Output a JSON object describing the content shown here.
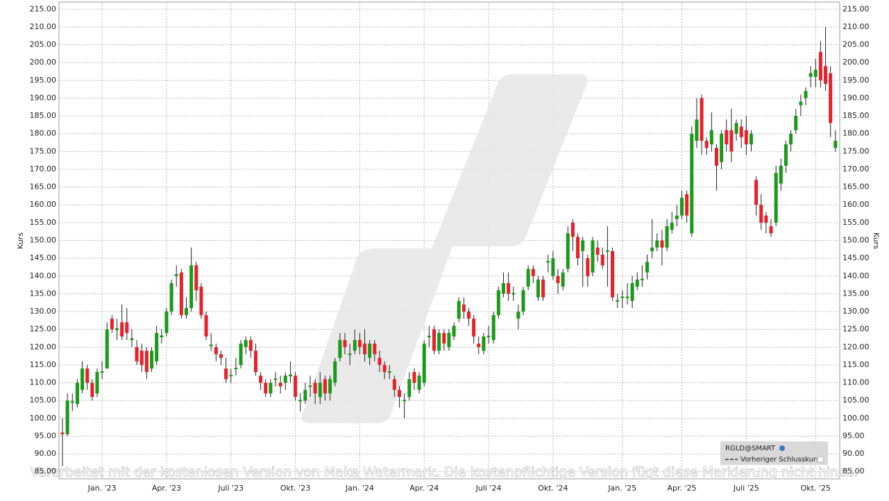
{
  "chart_data": {
    "type": "candlestick",
    "y_label": "Kurs",
    "legend": {
      "symbol": "RGLD@SMART",
      "line": "Vorheriger Schlusskurs"
    },
    "annotation": "Verarbeitet mit der kostenlosen Version von Make Watermark. Die kostenpflichtige Version fügt diese Markierung nicht hinzu.",
    "up_color": "#1a9a1a",
    "down_color": "#e8202a",
    "grid": true,
    "ylim": [
      83,
      217
    ],
    "yticks": [
      {
        "value": 85,
        "label": "85.00"
      },
      {
        "value": 90,
        "label": "90.00"
      },
      {
        "value": 95,
        "label": "95.00"
      },
      {
        "value": 100,
        "label": "100.00"
      },
      {
        "value": 105,
        "label": "105.00"
      },
      {
        "value": 110,
        "label": "110.00"
      },
      {
        "value": 115,
        "label": "115.00"
      },
      {
        "value": 120,
        "label": "120.00"
      },
      {
        "value": 125,
        "label": "125.00"
      },
      {
        "value": 130,
        "label": "130.00"
      },
      {
        "value": 135,
        "label": "135.00"
      },
      {
        "value": 140,
        "label": "140.00"
      },
      {
        "value": 145,
        "label": "145.00"
      },
      {
        "value": 150,
        "label": "150.00"
      },
      {
        "value": 155,
        "label": "155.00"
      },
      {
        "value": 160,
        "label": "160.00"
      },
      {
        "value": 165,
        "label": "165.00"
      },
      {
        "value": 170,
        "label": "170.00"
      },
      {
        "value": 175,
        "label": "175.00"
      },
      {
        "value": 180,
        "label": "180.00"
      },
      {
        "value": 185,
        "label": "185.00"
      },
      {
        "value": 190,
        "label": "190.00"
      },
      {
        "value": 195,
        "label": "195.00"
      },
      {
        "value": 200,
        "label": "200.00"
      },
      {
        "value": 205,
        "label": "205.00"
      },
      {
        "value": 210,
        "label": "210.00"
      },
      {
        "value": 215,
        "label": "215.00"
      }
    ],
    "categories": [
      null,
      null,
      null,
      null,
      null,
      null,
      null,
      null,
      "Jan. '23",
      null,
      null,
      null,
      null,
      null,
      null,
      null,
      null,
      null,
      null,
      null,
      null,
      "Apr. '23",
      null,
      null,
      null,
      null,
      null,
      null,
      null,
      null,
      null,
      null,
      null,
      null,
      "Juli '23",
      null,
      null,
      null,
      null,
      null,
      null,
      null,
      null,
      null,
      null,
      null,
      null,
      "Okt. '23",
      null,
      null,
      null,
      null,
      null,
      null,
      null,
      null,
      null,
      null,
      null,
      null,
      "Jan. '24",
      null,
      null,
      null,
      null,
      null,
      null,
      null,
      null,
      null,
      null,
      null,
      null,
      "Apr. '24",
      null,
      null,
      null,
      null,
      null,
      null,
      null,
      null,
      null,
      null,
      null,
      null,
      "Juli '24",
      null,
      null,
      null,
      null,
      null,
      null,
      null,
      null,
      null,
      null,
      null,
      null,
      "Okt. '24",
      null,
      null,
      null,
      null,
      null,
      null,
      null,
      null,
      null,
      null,
      null,
      null,
      null,
      "Jan. '25",
      null,
      null,
      null,
      null,
      null,
      null,
      null,
      null,
      null,
      null,
      null,
      "Apr. '25",
      null,
      null,
      null,
      null,
      null,
      null,
      null,
      null,
      null,
      null,
      null,
      null,
      "Juli '25",
      null,
      null,
      null,
      null,
      null,
      null,
      null,
      null,
      null,
      null,
      null,
      null,
      null,
      "Okt. '25",
      null,
      null,
      null,
      null
    ],
    "open": [
      96,
      95.5,
      104.4,
      104,
      108,
      114,
      110,
      107,
      112.8,
      114,
      128,
      124.8,
      127,
      127,
      122,
      120,
      119,
      119,
      114,
      116,
      122.8,
      124,
      130,
      140,
      141,
      129,
      131,
      143,
      137,
      129,
      120.3,
      120,
      118,
      114,
      111.8,
      113.8,
      115,
      120,
      122,
      119,
      112,
      110,
      107,
      110.8,
      110,
      110,
      111.8,
      112,
      104.8,
      105,
      108.8,
      110,
      106,
      111,
      107,
      110,
      117,
      122,
      117.8,
      119,
      122,
      121,
      117,
      121,
      117,
      115,
      112.8,
      111,
      108,
      104.8,
      106,
      113,
      108,
      110,
      122.8,
      125,
      119,
      124,
      120,
      123,
      128,
      132,
      130,
      128,
      121,
      119,
      122.8,
      122,
      129,
      135,
      138,
      134.8,
      128,
      130,
      137,
      142,
      134,
      139,
      143.8,
      140,
      140,
      137,
      142,
      155,
      151,
      147,
      145,
      141,
      148,
      146,
      146.8,
      147,
      132.8,
      133.8,
      133.8,
      133,
      137,
      138.8,
      141,
      147,
      148,
      150,
      148,
      153,
      156,
      157,
      163,
      152,
      178,
      190,
      178,
      177,
      176,
      172,
      181,
      181,
      180,
      182,
      181,
      177,
      167,
      160,
      157,
      154,
      155,
      166,
      171,
      177,
      181,
      188,
      190,
      196,
      196,
      203,
      199,
      197,
      176
    ],
    "high": [
      100,
      107,
      107,
      111,
      116,
      115,
      111,
      114,
      116,
      127,
      129,
      128,
      132,
      131,
      125,
      122,
      121,
      120,
      120,
      126,
      125,
      131,
      139,
      143,
      142,
      134,
      148,
      144,
      138,
      130,
      124,
      121,
      119,
      117,
      114,
      117,
      122,
      123,
      123,
      121,
      113,
      111,
      111,
      113,
      112,
      113,
      116,
      113,
      107,
      110,
      112,
      111,
      113,
      112,
      112,
      117,
      124,
      124,
      121,
      125,
      124,
      125,
      122,
      122,
      119,
      116,
      115,
      112,
      109,
      107,
      113,
      114,
      113,
      122,
      126,
      126,
      125,
      125,
      125,
      127,
      134,
      134,
      131,
      129,
      123,
      124,
      126,
      130,
      137,
      141,
      141,
      137,
      132,
      137,
      143,
      143,
      140,
      140,
      146,
      147,
      142,
      142,
      154,
      156,
      152,
      151,
      146,
      151,
      150,
      148,
      154,
      148,
      135,
      136,
      138,
      140,
      141,
      143,
      146,
      156,
      152,
      153,
      156,
      158,
      160,
      164,
      164,
      182,
      190,
      191,
      179,
      186,
      177,
      181,
      184,
      187,
      184,
      184,
      185,
      181,
      168,
      163,
      158,
      156,
      171,
      173,
      178,
      181,
      187,
      191,
      193,
      199,
      201,
      206,
      210,
      199,
      181
    ],
    "low": [
      86.5,
      95,
      102,
      103,
      107,
      108,
      105,
      106,
      111,
      114,
      124,
      122,
      122,
      122,
      120,
      115,
      113,
      111,
      113,
      115,
      121,
      123,
      129,
      137,
      128,
      128,
      130,
      133,
      128,
      122,
      119,
      116,
      115,
      110,
      110,
      112,
      114,
      118,
      117,
      112,
      108,
      106,
      106,
      109,
      107,
      108,
      110,
      105,
      102,
      104,
      106,
      104,
      104,
      105,
      105,
      109,
      116,
      118,
      115,
      118,
      118,
      116,
      115,
      116,
      113,
      111,
      111,
      106,
      103,
      100,
      105,
      108,
      107,
      109,
      120,
      118,
      118,
      119,
      119,
      122,
      127,
      128,
      126,
      121,
      118,
      118,
      121,
      121,
      128,
      134,
      133,
      133,
      125,
      129,
      136,
      138,
      133,
      133,
      141,
      139,
      135,
      136,
      141,
      147,
      143,
      137,
      137,
      140,
      144,
      142,
      137,
      133,
      131,
      131,
      132,
      131,
      136,
      137,
      139,
      145,
      147,
      143,
      147,
      152,
      154,
      156,
      155,
      151,
      176,
      174,
      174,
      175,
      164,
      170,
      175,
      172,
      178,
      176,
      174,
      175,
      157,
      153,
      152,
      151,
      154,
      164,
      169,
      175,
      180,
      185,
      188,
      193,
      193,
      193,
      192,
      179,
      175
    ],
    "close": [
      95.5,
      105,
      104.8,
      110,
      114,
      110,
      106,
      113,
      113.2,
      125,
      125,
      125.3,
      123,
      124,
      122.5,
      116,
      115,
      113,
      119,
      124,
      123.3,
      130,
      138,
      140.5,
      129,
      131,
      143,
      136,
      129,
      123,
      120.7,
      118,
      117,
      111,
      112.2,
      114.2,
      121,
      122,
      119,
      113,
      110,
      107,
      110,
      111.2,
      109,
      112,
      112.3,
      106,
      105.2,
      108,
      109.2,
      107,
      110,
      107,
      111,
      116,
      122,
      120,
      118.2,
      122,
      120,
      118,
      121,
      118,
      115,
      113,
      113.2,
      108,
      106,
      105.2,
      111,
      110,
      112,
      121,
      123.2,
      119,
      124,
      121,
      124,
      126,
      133,
      130,
      128,
      123,
      120,
      123,
      123.2,
      129,
      136,
      138,
      135,
      135.2,
      130,
      136,
      142,
      140,
      139,
      134,
      144.2,
      145,
      138,
      141,
      152,
      151,
      145,
      150,
      140,
      150,
      146,
      143,
      147.2,
      134,
      133.2,
      134.2,
      134.2,
      138,
      139,
      139.2,
      144,
      148,
      150,
      148,
      154,
      155,
      157,
      162,
      157,
      180,
      184,
      178,
      176,
      181,
      171,
      180,
      177,
      175,
      183,
      179,
      177,
      180,
      160,
      155,
      155,
      152,
      169,
      171,
      177,
      180,
      185,
      189,
      192,
      197,
      198,
      195,
      194,
      183,
      178
    ]
  }
}
